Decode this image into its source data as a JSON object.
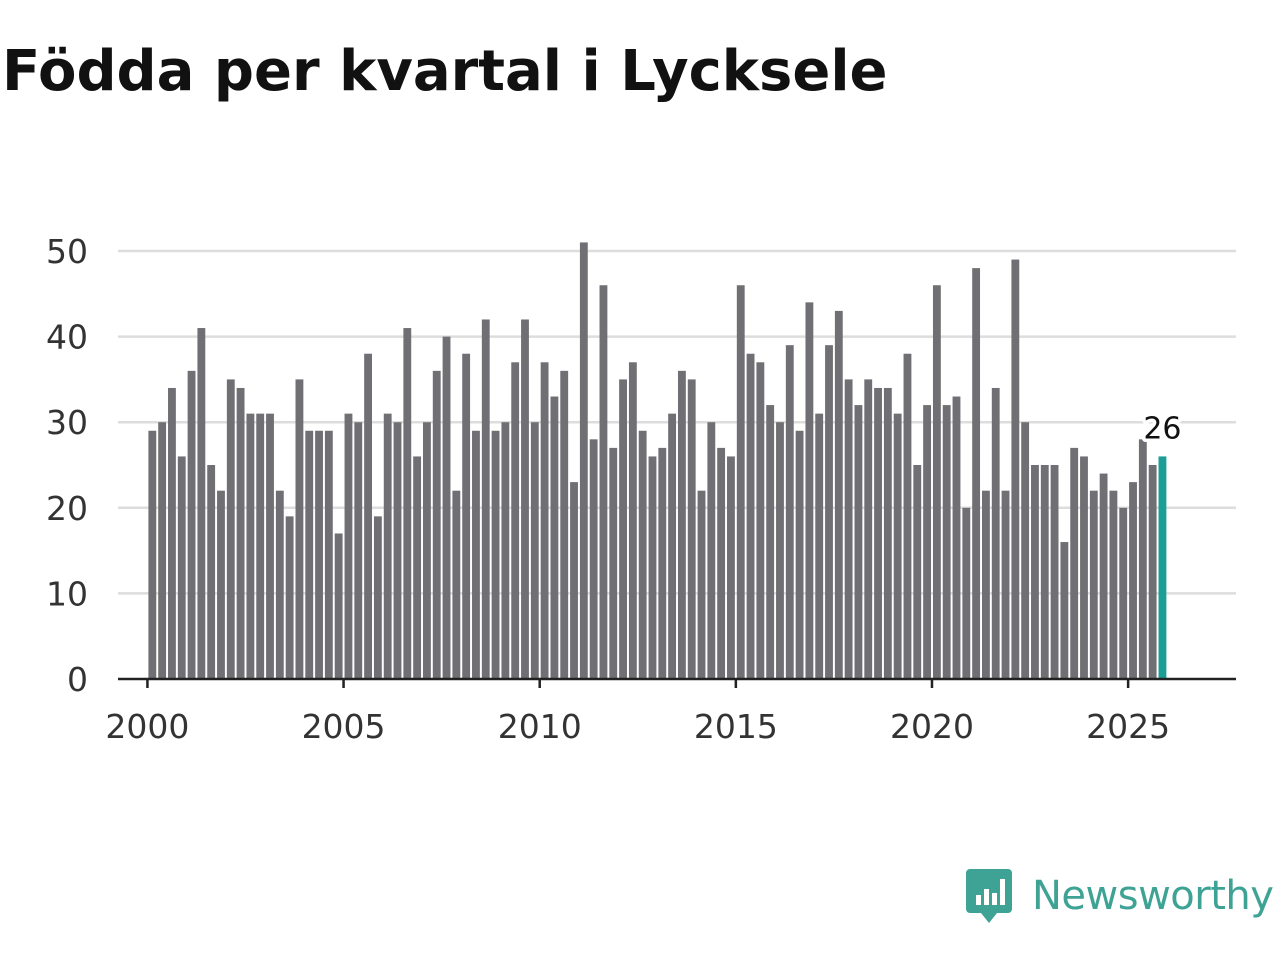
{
  "title": "Födda per kvartal i Lycksele",
  "brand": {
    "name": "Newsworthy",
    "color": "#3ea394"
  },
  "chart_data": {
    "type": "bar",
    "title": "Födda per kvartal i Lycksele",
    "xlabel": "",
    "ylabel": "",
    "ylim": [
      0,
      50
    ],
    "yticks": [
      0,
      10,
      20,
      30,
      40,
      50
    ],
    "xticks": [
      2000,
      2005,
      2010,
      2015,
      2020,
      2025
    ],
    "xticklabels": [
      "2000",
      "2005",
      "2010",
      "2015",
      "2020",
      "2025"
    ],
    "xlim": [
      1999.25,
      2027.75
    ],
    "start": {
      "year": 2000,
      "quarter": 1
    },
    "quarter_step": 0.25,
    "grid": true,
    "bar_color": "#707074",
    "highlight_color": "#1a9e96",
    "highlight_label": "26",
    "values": [
      29,
      30,
      34,
      26,
      36,
      41,
      25,
      22,
      35,
      34,
      31,
      31,
      31,
      22,
      19,
      35,
      29,
      29,
      29,
      17,
      31,
      30,
      38,
      19,
      31,
      30,
      41,
      26,
      30,
      36,
      40,
      22,
      38,
      29,
      42,
      29,
      30,
      37,
      42,
      30,
      37,
      33,
      36,
      23,
      51,
      28,
      46,
      27,
      35,
      37,
      29,
      26,
      27,
      31,
      36,
      35,
      22,
      30,
      27,
      26,
      46,
      38,
      37,
      32,
      30,
      39,
      29,
      44,
      31,
      39,
      43,
      35,
      32,
      35,
      34,
      34,
      31,
      38,
      25,
      32,
      46,
      32,
      33,
      20,
      48,
      22,
      34,
      22,
      49,
      30,
      25,
      25,
      25,
      16,
      27,
      26,
      22,
      24,
      22,
      20,
      23,
      28,
      25,
      26
    ]
  }
}
